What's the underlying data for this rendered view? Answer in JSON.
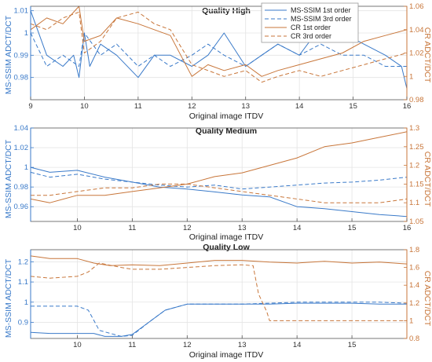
{
  "colors": {
    "blue": "#3a7ac9",
    "orange": "#c8763a",
    "axis": "#555555",
    "grid": "#e4e4e4"
  },
  "legend": {
    "placement": "top-right",
    "entries": [
      {
        "label": "MS-SSIM 1st order",
        "color": "#3a7ac9",
        "dash": "solid"
      },
      {
        "label": "MS-SSIM 3rd order",
        "color": "#3a7ac9",
        "dash": "dashed"
      },
      {
        "label": "CR 1st order",
        "color": "#c8763a",
        "dash": "solid"
      },
      {
        "label": "CR 3rd order",
        "color": "#c8763a",
        "dash": "dashed"
      }
    ]
  },
  "chart_data": [
    {
      "type": "line",
      "title": "Quality High",
      "xlabel": "Original image ITDV",
      "ylabel_left": "MS-SSIM ADCT/DCT",
      "ylabel_right": "CR ADCT/DCT",
      "xlim": [
        9,
        16
      ],
      "xticks": [
        9,
        10,
        11,
        12,
        13,
        14,
        15,
        16
      ],
      "ylim_left": [
        0.97,
        1.012
      ],
      "yticks_left": [
        0.98,
        0.99,
        1,
        1.01
      ],
      "ylim_right": [
        0.98,
        1.06
      ],
      "yticks_right": [
        0.98,
        1,
        1.02,
        1.04,
        1.06
      ],
      "grid": true,
      "series": [
        {
          "name": "MS-SSIM 1st order",
          "axis": "left",
          "dash": "solid",
          "x": [
            9,
            9.3,
            9.6,
            9.8,
            9.9,
            10.0,
            10.1,
            10.3,
            10.6,
            11.0,
            11.3,
            11.6,
            12.0,
            12.3,
            12.6,
            13.0,
            13.3,
            13.6,
            14.0,
            14.4,
            14.8,
            15.2,
            15.6,
            15.9,
            16.0
          ],
          "y": [
            1.01,
            0.99,
            0.985,
            0.99,
            0.98,
            1.0,
            0.985,
            0.995,
            0.99,
            0.98,
            0.99,
            0.99,
            0.985,
            0.99,
            1.0,
            0.985,
            0.99,
            0.995,
            0.99,
            1.003,
            1.0,
            0.995,
            0.99,
            0.985,
            0.975
          ]
        },
        {
          "name": "MS-SSIM 3rd order",
          "axis": "left",
          "dash": "dashed",
          "x": [
            9,
            9.3,
            9.6,
            9.9,
            10.0,
            10.3,
            10.6,
            11.0,
            11.3,
            11.6,
            12.0,
            12.3,
            12.6,
            13.0,
            13.3,
            13.6,
            14.0,
            14.4,
            14.8,
            15.2,
            15.6,
            16.0
          ],
          "y": [
            1.0,
            0.985,
            0.99,
            0.985,
            1.0,
            0.99,
            0.995,
            0.985,
            0.99,
            0.985,
            0.99,
            0.995,
            0.99,
            0.985,
            0.99,
            0.995,
            0.99,
            0.995,
            0.99,
            0.99,
            0.985,
            0.985
          ]
        },
        {
          "name": "CR 1st order",
          "axis": "right",
          "dash": "solid",
          "x": [
            9,
            9.3,
            9.6,
            9.9,
            10.0,
            10.3,
            10.6,
            11.0,
            11.3,
            11.6,
            12.0,
            12.3,
            12.6,
            13.0,
            13.3,
            13.6,
            14.0,
            14.4,
            14.8,
            15.2,
            15.6,
            16.0
          ],
          "y": [
            1.04,
            1.05,
            1.045,
            1.06,
            1.03,
            1.035,
            1.05,
            1.045,
            1.04,
            1.035,
            1.0,
            1.01,
            1.005,
            1.01,
            1.0,
            1.005,
            1.01,
            1.015,
            1.02,
            1.03,
            1.035,
            1.04
          ]
        },
        {
          "name": "CR 3rd order",
          "axis": "right",
          "dash": "dashed",
          "x": [
            9,
            9.3,
            9.6,
            9.9,
            10.0,
            10.3,
            10.6,
            11.0,
            11.3,
            11.6,
            12.0,
            12.3,
            12.6,
            13.0,
            13.3,
            13.6,
            14.0,
            14.4,
            14.8,
            15.2,
            15.6,
            16.0
          ],
          "y": [
            1.045,
            1.04,
            1.05,
            1.055,
            1.02,
            1.03,
            1.05,
            1.055,
            1.045,
            1.04,
            1.01,
            1.005,
            1.0,
            1.005,
            0.995,
            1.0,
            1.005,
            1.0,
            1.005,
            1.01,
            1.015,
            1.02
          ]
        }
      ]
    },
    {
      "type": "line",
      "title": "Quality Medium",
      "xlabel": "Original image ITDV",
      "ylabel_left": "MS-SSIM ADCT/DCT",
      "ylabel_right": "CR ADCT/DCT",
      "xlim": [
        9.15,
        16
      ],
      "xticks": [
        10,
        11,
        12,
        13,
        14,
        15,
        16
      ],
      "ylim_left": [
        0.945,
        1.04
      ],
      "yticks_left": [
        0.96,
        0.98,
        1,
        1.02,
        1.04
      ],
      "ylim_right": [
        1.05,
        1.3
      ],
      "yticks_right": [
        1.05,
        1.1,
        1.15,
        1.2,
        1.25,
        1.3
      ],
      "grid": true,
      "series": [
        {
          "name": "MS-SSIM 1st order",
          "axis": "left",
          "dash": "solid",
          "x": [
            9.15,
            9.5,
            10.0,
            10.5,
            11.0,
            11.5,
            12.0,
            12.5,
            13.0,
            13.5,
            14.0,
            14.5,
            15.0,
            15.5,
            16.0
          ],
          "y": [
            1.0,
            0.995,
            0.997,
            0.99,
            0.985,
            0.98,
            0.978,
            0.975,
            0.972,
            0.97,
            0.96,
            0.958,
            0.955,
            0.952,
            0.95
          ]
        },
        {
          "name": "MS-SSIM 3rd order",
          "axis": "left",
          "dash": "dashed",
          "x": [
            9.15,
            9.5,
            10.0,
            10.5,
            11.0,
            11.5,
            12.0,
            12.5,
            13.0,
            13.5,
            14.0,
            14.5,
            15.0,
            15.5,
            16.0
          ],
          "y": [
            0.995,
            0.99,
            0.993,
            0.988,
            0.985,
            0.982,
            0.98,
            0.982,
            0.978,
            0.98,
            0.982,
            0.984,
            0.985,
            0.987,
            0.99
          ]
        },
        {
          "name": "CR 1st order",
          "axis": "right",
          "dash": "solid",
          "x": [
            9.15,
            9.5,
            10.0,
            10.5,
            11.0,
            11.5,
            12.0,
            12.5,
            13.0,
            13.5,
            14.0,
            14.5,
            15.0,
            15.5,
            16.0
          ],
          "y": [
            1.11,
            1.1,
            1.12,
            1.12,
            1.13,
            1.14,
            1.15,
            1.17,
            1.18,
            1.2,
            1.22,
            1.25,
            1.26,
            1.275,
            1.29
          ]
        },
        {
          "name": "CR 3rd order",
          "axis": "right",
          "dash": "dashed",
          "x": [
            9.15,
            9.5,
            10.0,
            10.5,
            11.0,
            11.5,
            12.0,
            12.5,
            13.0,
            13.5,
            14.0,
            14.5,
            15.0,
            15.5,
            16.0
          ],
          "y": [
            1.12,
            1.12,
            1.13,
            1.14,
            1.14,
            1.15,
            1.15,
            1.14,
            1.13,
            1.12,
            1.11,
            1.1,
            1.1,
            1.1,
            1.11
          ]
        }
      ]
    },
    {
      "type": "line",
      "title": "Quality Low",
      "xlabel": "Original image ITDV",
      "ylabel_left": "MS-SSIM ADCT/DCT",
      "ylabel_right": "CR ADCT/DCT",
      "xlim": [
        9.15,
        16
      ],
      "xticks": [
        10,
        11,
        12,
        13,
        14,
        15
      ],
      "ylim_left": [
        0.82,
        1.26
      ],
      "yticks_left": [
        0.9,
        1,
        1.1,
        1.2
      ],
      "ylim_right": [
        0.8,
        1.8
      ],
      "yticks_right": [
        0.8,
        1,
        1.2,
        1.4,
        1.6,
        1.8
      ],
      "grid": true,
      "series": [
        {
          "name": "MS-SSIM 1st order",
          "axis": "left",
          "dash": "solid",
          "x": [
            9.15,
            9.5,
            10.0,
            10.3,
            10.5,
            10.8,
            11.0,
            11.3,
            11.6,
            12.0,
            12.5,
            13.0,
            13.5,
            14.0,
            14.5,
            15.0,
            15.5,
            16.0
          ],
          "y": [
            0.85,
            0.845,
            0.845,
            0.845,
            0.83,
            0.83,
            0.84,
            0.9,
            0.96,
            0.99,
            0.99,
            0.99,
            0.99,
            0.995,
            0.995,
            0.995,
            0.99,
            0.99
          ]
        },
        {
          "name": "MS-SSIM 3rd order",
          "axis": "left",
          "dash": "dashed",
          "x": [
            9.15,
            9.5,
            10.0,
            10.2,
            10.4,
            10.8,
            11.0,
            11.3,
            11.6,
            12.0,
            12.5,
            13.0,
            13.5,
            14.0,
            14.5,
            15.0,
            15.5,
            16.0
          ],
          "y": [
            0.98,
            0.98,
            0.98,
            0.96,
            0.86,
            0.83,
            0.835,
            0.9,
            0.96,
            0.99,
            0.99,
            0.99,
            0.995,
            1.0,
            1.0,
            1.0,
            1.0,
            0.995
          ]
        },
        {
          "name": "CR 1st order",
          "axis": "right",
          "dash": "solid",
          "x": [
            9.15,
            9.5,
            10.0,
            10.3,
            10.6,
            11.0,
            11.5,
            12.0,
            12.5,
            13.0,
            13.5,
            14.0,
            14.5,
            15.0,
            15.5,
            16.0
          ],
          "y": [
            1.73,
            1.7,
            1.7,
            1.65,
            1.62,
            1.63,
            1.62,
            1.65,
            1.68,
            1.68,
            1.66,
            1.65,
            1.67,
            1.65,
            1.66,
            1.64
          ]
        },
        {
          "name": "CR 3rd order",
          "axis": "right",
          "dash": "dashed",
          "x": [
            9.15,
            9.5,
            10.0,
            10.2,
            10.4,
            10.8,
            11.0,
            11.5,
            12.0,
            12.5,
            13.0,
            13.2,
            13.3,
            13.45,
            13.5,
            14.0,
            15.0,
            16.0
          ],
          "y": [
            1.5,
            1.48,
            1.5,
            1.55,
            1.65,
            1.6,
            1.58,
            1.58,
            1.6,
            1.62,
            1.63,
            1.62,
            1.3,
            1.1,
            1.0,
            1.0,
            1.0,
            1.0
          ]
        }
      ]
    }
  ]
}
